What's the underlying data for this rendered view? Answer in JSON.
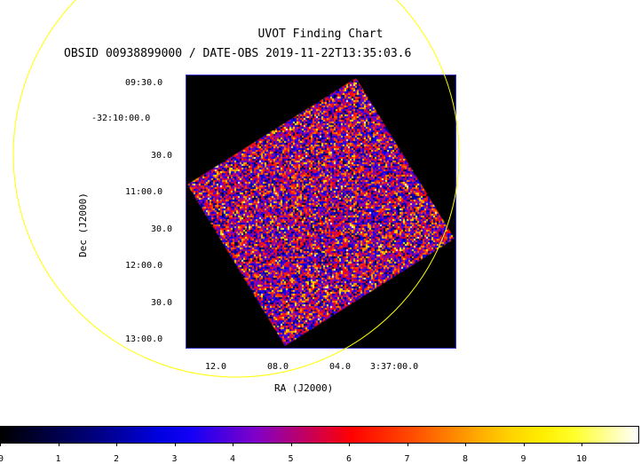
{
  "chart_title": "UVOT Finding Chart",
  "chart_subtitle": "OBSID 00938899000 / DATE-OBS 2019-11-22T13:35:03.6",
  "axes": {
    "xlabel": "RA (J2000)",
    "ylabel": "Dec (J2000)",
    "dec_ticks": [
      "09:30.0",
      "-32:10:00.0",
      "30.0",
      "11:00.0",
      "30.0",
      "12:00.0",
      "30.0",
      "13:00.0"
    ],
    "ra_ticks": [
      "12.0",
      "08.0",
      "04.0",
      "3:37:00.0"
    ]
  },
  "colorbar": {
    "ticks": [
      "0",
      "1",
      "2",
      "3",
      "4",
      "5",
      "6",
      "7",
      "8",
      "9",
      "10"
    ],
    "colormap": "heat (black-blue-purple-red-orange-yellow-white)"
  },
  "colors": {
    "circle": "#ffff00",
    "frame": "#3333cc",
    "background": "#000000"
  }
}
